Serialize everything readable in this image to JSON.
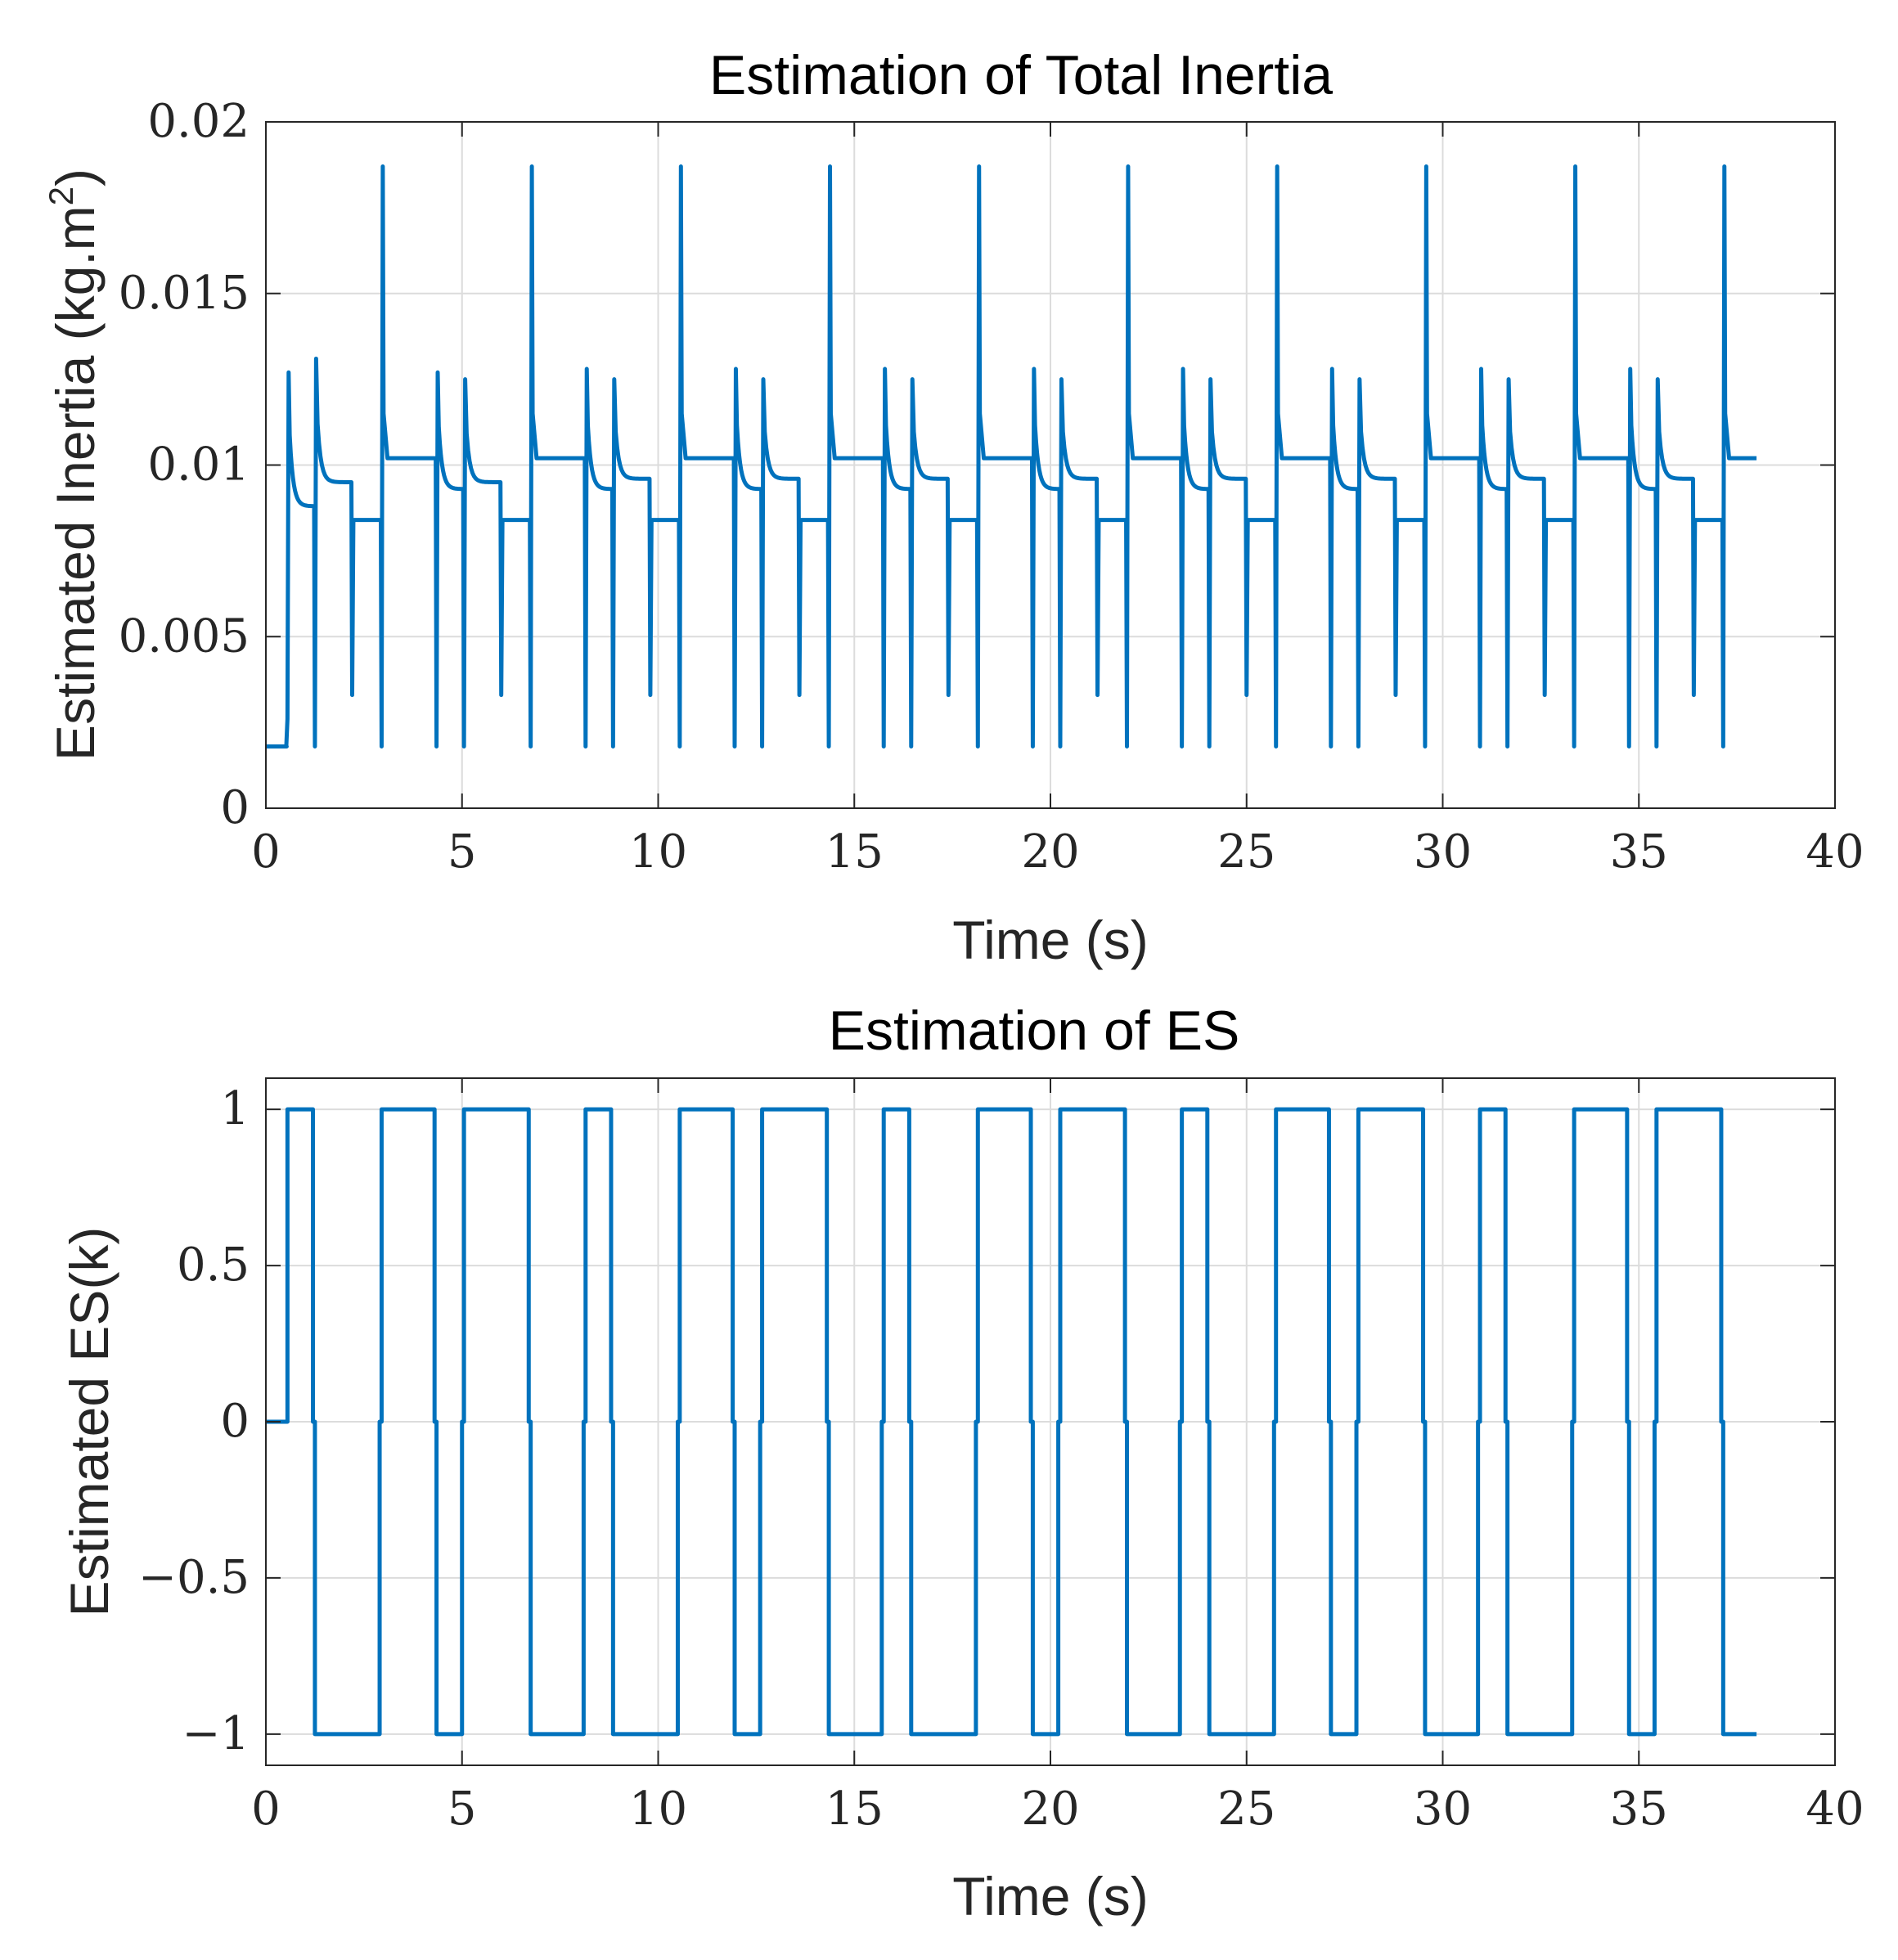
{
  "line_color": "#0072BD",
  "chart_data": [
    {
      "type": "line",
      "title": "Estimation of Total Inertia",
      "xlabel": "Time (s)",
      "ylabel": "Estimated Inertia (kg.m",
      "ylabel_sup": "2",
      "ylabel_close": ")",
      "xlim": [
        0,
        40
      ],
      "ylim": [
        0,
        0.02
      ],
      "xticks": [
        0,
        5,
        10,
        15,
        20,
        25,
        30,
        35,
        40
      ],
      "xtick_labels": [
        "0",
        "5",
        "10",
        "15",
        "20",
        "25",
        "30",
        "35",
        "40"
      ],
      "yticks": [
        0,
        0.005,
        0.01,
        0.015,
        0.02
      ],
      "ytick_labels": [
        "0",
        "0.005",
        "0.01",
        "0.015",
        "0.02"
      ],
      "grid": true,
      "series": [
        {
          "name": "Estimated Inertia",
          "baseline": 0.0018,
          "peak": 0.0187,
          "dip_deep": 0.0018,
          "dip_shallow": 0.0033,
          "t_start": 0,
          "t_end": 38,
          "segments": [
            {
              "t": 0.55,
              "kind": "rise",
              "peak": 0.0127,
              "settle": 0.0088
            },
            {
              "t": 1.25,
              "kind": "down",
              "peak": 0.0131,
              "settle": 0.0095
            },
            {
              "t": 2.2,
              "kind": "flat",
              "settle": 0.0084
            },
            {
              "t": 2.95,
              "kind": "up",
              "peak": 0.0187,
              "settle": 0.0102
            },
            {
              "t": 4.35,
              "kind": "down",
              "peak": 0.0127,
              "settle": 0.0093
            },
            {
              "t": 5.05,
              "kind": "down",
              "peak": 0.0125,
              "settle": 0.0095
            },
            {
              "t": 6.0,
              "kind": "flat",
              "settle": 0.0084
            },
            {
              "t": 6.75,
              "kind": "up",
              "peak": 0.0187,
              "settle": 0.0102
            },
            {
              "t": 8.15,
              "kind": "down",
              "peak": 0.0128,
              "settle": 0.0093
            },
            {
              "t": 8.85,
              "kind": "down",
              "peak": 0.0125,
              "settle": 0.0096
            },
            {
              "t": 9.8,
              "kind": "flat",
              "settle": 0.0084
            },
            {
              "t": 10.55,
              "kind": "up",
              "peak": 0.0187,
              "settle": 0.0102
            },
            {
              "t": 11.95,
              "kind": "down",
              "peak": 0.0128,
              "settle": 0.0093
            },
            {
              "t": 12.65,
              "kind": "down",
              "peak": 0.0125,
              "settle": 0.0096
            },
            {
              "t": 13.6,
              "kind": "flat",
              "settle": 0.0084
            },
            {
              "t": 14.35,
              "kind": "up",
              "peak": 0.0187,
              "settle": 0.0102
            },
            {
              "t": 15.75,
              "kind": "down",
              "peak": 0.0128,
              "settle": 0.0093
            },
            {
              "t": 16.45,
              "kind": "down",
              "peak": 0.0125,
              "settle": 0.0096
            },
            {
              "t": 17.4,
              "kind": "flat",
              "settle": 0.0084
            },
            {
              "t": 18.15,
              "kind": "up",
              "peak": 0.0187,
              "settle": 0.0102
            },
            {
              "t": 19.55,
              "kind": "down",
              "peak": 0.0128,
              "settle": 0.0093
            },
            {
              "t": 20.25,
              "kind": "down",
              "peak": 0.0125,
              "settle": 0.0096
            },
            {
              "t": 21.2,
              "kind": "flat",
              "settle": 0.0084
            },
            {
              "t": 21.95,
              "kind": "up",
              "peak": 0.0187,
              "settle": 0.0102
            },
            {
              "t": 23.35,
              "kind": "down",
              "peak": 0.0128,
              "settle": 0.0093
            },
            {
              "t": 24.05,
              "kind": "down",
              "peak": 0.0125,
              "settle": 0.0096
            },
            {
              "t": 25.0,
              "kind": "flat",
              "settle": 0.0084
            },
            {
              "t": 25.75,
              "kind": "up",
              "peak": 0.0187,
              "settle": 0.0102
            },
            {
              "t": 27.15,
              "kind": "down",
              "peak": 0.0128,
              "settle": 0.0093
            },
            {
              "t": 27.85,
              "kind": "down",
              "peak": 0.0125,
              "settle": 0.0096
            },
            {
              "t": 28.8,
              "kind": "flat",
              "settle": 0.0084
            },
            {
              "t": 29.55,
              "kind": "up",
              "peak": 0.0187,
              "settle": 0.0102
            },
            {
              "t": 30.95,
              "kind": "down",
              "peak": 0.0128,
              "settle": 0.0093
            },
            {
              "t": 31.65,
              "kind": "down",
              "peak": 0.0125,
              "settle": 0.0096
            },
            {
              "t": 32.6,
              "kind": "flat",
              "settle": 0.0084
            },
            {
              "t": 33.35,
              "kind": "up",
              "peak": 0.0187,
              "settle": 0.0102
            },
            {
              "t": 34.75,
              "kind": "down",
              "peak": 0.0128,
              "settle": 0.0093
            },
            {
              "t": 35.45,
              "kind": "down",
              "peak": 0.0125,
              "settle": 0.0096
            },
            {
              "t": 36.4,
              "kind": "flat",
              "settle": 0.0084
            },
            {
              "t": 37.15,
              "kind": "up",
              "peak": 0.0187,
              "settle": 0.0102
            }
          ]
        }
      ]
    },
    {
      "type": "line",
      "title": "Estimation of ES",
      "xlabel": "Time (s)",
      "ylabel": "Estimated ES(k)",
      "xlim": [
        0,
        40
      ],
      "ylim": [
        -1.1,
        1.1
      ],
      "xticks": [
        0,
        5,
        10,
        15,
        20,
        25,
        30,
        35,
        40
      ],
      "xtick_labels": [
        "0",
        "5",
        "10",
        "15",
        "20",
        "25",
        "30",
        "35",
        "40"
      ],
      "yticks": [
        -1,
        -0.5,
        0,
        0.5,
        1
      ],
      "ytick_labels": [
        "−1",
        "−0.5",
        "0",
        "0.5",
        "1"
      ],
      "grid": true,
      "series": [
        {
          "name": "Estimated ES(k)",
          "x": [
            0,
            0.55,
            0.55,
            1.2,
            1.2,
            1.25,
            1.25,
            2.9,
            2.9,
            2.95,
            2.95,
            4.3,
            4.3,
            4.35,
            4.35,
            5.0,
            5.0,
            5.05,
            5.05,
            6.7,
            6.7,
            6.75,
            6.75,
            8.1,
            8.1,
            8.15,
            8.15,
            8.8,
            8.8,
            8.85,
            8.85,
            10.5,
            10.5,
            10.55,
            10.55,
            11.9,
            11.9,
            11.95,
            11.95,
            12.6,
            12.6,
            12.65,
            12.65,
            14.3,
            14.3,
            14.35,
            14.35,
            15.7,
            15.7,
            15.75,
            15.75,
            16.4,
            16.4,
            16.45,
            16.45,
            18.1,
            18.1,
            18.15,
            18.15,
            19.5,
            19.5,
            19.55,
            19.55,
            20.2,
            20.2,
            20.25,
            20.25,
            21.9,
            21.9,
            21.95,
            21.95,
            23.3,
            23.3,
            23.35,
            23.35,
            24.0,
            24.0,
            24.05,
            24.05,
            25.7,
            25.7,
            25.75,
            25.75,
            27.1,
            27.1,
            27.15,
            27.15,
            27.8,
            27.8,
            27.85,
            27.85,
            29.5,
            29.5,
            29.55,
            29.55,
            30.9,
            30.9,
            30.95,
            30.95,
            31.6,
            31.6,
            31.65,
            31.65,
            33.3,
            33.3,
            33.35,
            33.35,
            34.7,
            34.7,
            34.75,
            34.75,
            35.4,
            35.4,
            35.45,
            35.45,
            37.1,
            37.1,
            37.15,
            37.15,
            38
          ],
          "y": [
            0,
            0,
            1,
            1,
            0,
            0,
            -1,
            -1,
            0,
            0,
            1,
            1,
            0,
            0,
            -1,
            -1,
            0,
            0,
            1,
            1,
            0,
            0,
            -1,
            -1,
            0,
            0,
            1,
            1,
            0,
            0,
            -1,
            -1,
            0,
            0,
            1,
            1,
            0,
            0,
            -1,
            -1,
            0,
            0,
            1,
            1,
            0,
            0,
            -1,
            -1,
            0,
            0,
            1,
            1,
            0,
            0,
            -1,
            -1,
            0,
            0,
            1,
            1,
            0,
            0,
            -1,
            -1,
            0,
            0,
            1,
            1,
            0,
            0,
            -1,
            -1,
            0,
            0,
            1,
            1,
            0,
            0,
            -1,
            -1,
            0,
            0,
            1,
            1,
            0,
            0,
            -1,
            -1,
            0,
            0,
            1,
            1,
            0,
            0,
            -1,
            -1,
            0,
            0,
            1,
            1,
            0,
            0,
            -1,
            -1,
            0,
            0,
            1,
            1,
            0,
            0,
            -1,
            -1,
            0,
            0,
            1,
            1,
            0,
            0,
            -1,
            -1
          ]
        }
      ]
    }
  ]
}
